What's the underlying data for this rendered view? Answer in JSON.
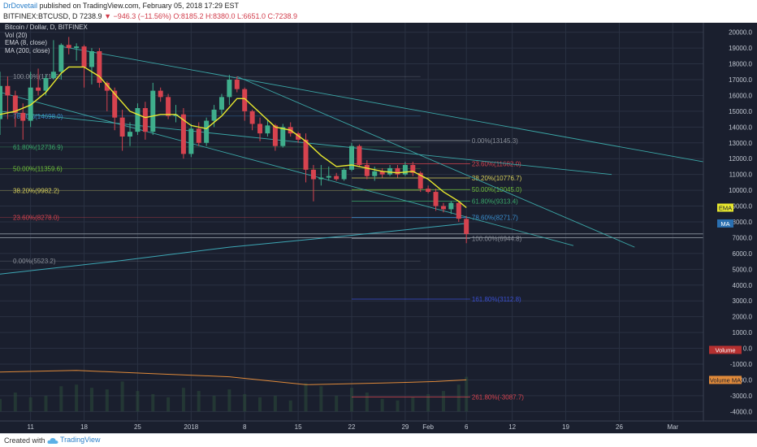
{
  "header": {
    "author": "DrDovetail",
    "published": "published on TradingView.com, February 05, 2018 17:29 EST",
    "symbol": "BITFINEX:BTCUSD, D",
    "last": "7238.9",
    "change_arrow": "▼",
    "change": "−946.3 (−11.56%)",
    "ohlc": "O:8185.2 H:8380.0 L:6651.0 C:7238.9"
  },
  "legend": {
    "title": "Bitcoin / Dollar, D, BITFINEX",
    "vol": "Vol (20)",
    "ema": "EMA (8, close)",
    "ma": "MA (200, close)"
  },
  "footer": {
    "created_with": "Created with",
    "brand": "TradingView"
  },
  "colors": {
    "background": "#1a1f2e",
    "grid": "#2a3142",
    "up": "#3fae8c",
    "down": "#d6434f",
    "ema": "#e8e82e",
    "ma": "#3da7b5",
    "volume_ma": "#e08a3a",
    "trendline": "#3ba7a7",
    "axis_text": "#c0c6d0"
  },
  "chart_data": {
    "type": "candlestick",
    "y_ticks": [
      20000,
      19000,
      18000,
      17000,
      16000,
      15000,
      14000,
      13000,
      12000,
      11000,
      10000,
      9000,
      8000,
      7000,
      6000,
      5000,
      4000,
      3000,
      2000,
      1000,
      0,
      -1000,
      -2000,
      -3000,
      -4000
    ],
    "ylim": [
      -4600,
      20600
    ],
    "x_ticks": [
      "11",
      "18",
      "25",
      "2018",
      "8",
      "15",
      "22",
      "29",
      "Feb",
      "6",
      "12",
      "19",
      "26",
      "Mar"
    ],
    "x_tick_days": [
      9,
      16,
      23,
      30,
      37,
      44,
      51,
      58,
      61,
      66,
      72,
      79,
      86,
      93
    ],
    "xlim": [
      5,
      97
    ],
    "badges": [
      {
        "label": "EMA",
        "value": 8900,
        "color": "#e8e82e",
        "text_color": "#1a1f2e"
      },
      {
        "label": "MA",
        "value": 7900,
        "color": "#2a6fb0",
        "text_color": "#ffffff"
      },
      {
        "label": "Volume",
        "value": -100,
        "color": "#b53030",
        "text_color": "#ffffff"
      },
      {
        "label": "Volume MA",
        "value": -2000,
        "color": "#e08a3a",
        "text_color": "#1a1f2e"
      }
    ],
    "candles": [
      {
        "day": 5,
        "o": 14500,
        "h": 17500,
        "l": 13500,
        "c": 16600
      },
      {
        "day": 6,
        "o": 16600,
        "h": 17200,
        "l": 14500,
        "c": 16000
      },
      {
        "day": 7,
        "o": 16000,
        "h": 16300,
        "l": 14000,
        "c": 14900
      },
      {
        "day": 8,
        "o": 14900,
        "h": 15500,
        "l": 13200,
        "c": 14400
      },
      {
        "day": 9,
        "o": 14400,
        "h": 17500,
        "l": 14000,
        "c": 16500
      },
      {
        "day": 10,
        "o": 16500,
        "h": 17700,
        "l": 16000,
        "c": 16300
      },
      {
        "day": 11,
        "o": 16300,
        "h": 17300,
        "l": 16000,
        "c": 17100
      },
      {
        "day": 12,
        "o": 17100,
        "h": 19500,
        "l": 17000,
        "c": 17500
      },
      {
        "day": 13,
        "o": 17500,
        "h": 19300,
        "l": 17000,
        "c": 19200
      },
      {
        "day": 14,
        "o": 19200,
        "h": 19700,
        "l": 18600,
        "c": 19000
      },
      {
        "day": 15,
        "o": 19000,
        "h": 19300,
        "l": 18200,
        "c": 19100
      },
      {
        "day": 16,
        "o": 19100,
        "h": 19200,
        "l": 16500,
        "c": 17800
      },
      {
        "day": 17,
        "o": 17800,
        "h": 19000,
        "l": 16700,
        "c": 18800
      },
      {
        "day": 18,
        "o": 18800,
        "h": 19000,
        "l": 16500,
        "c": 16800
      },
      {
        "day": 19,
        "o": 16800,
        "h": 16900,
        "l": 15000,
        "c": 16300
      },
      {
        "day": 20,
        "o": 16300,
        "h": 16500,
        "l": 13800,
        "c": 14600
      },
      {
        "day": 21,
        "o": 14600,
        "h": 15100,
        "l": 12500,
        "c": 13400
      },
      {
        "day": 22,
        "o": 13400,
        "h": 14300,
        "l": 12800,
        "c": 13700
      },
      {
        "day": 23,
        "o": 13700,
        "h": 15500,
        "l": 13500,
        "c": 15200
      },
      {
        "day": 24,
        "o": 15200,
        "h": 15600,
        "l": 13200,
        "c": 13700
      },
      {
        "day": 25,
        "o": 13700,
        "h": 16800,
        "l": 13500,
        "c": 16300
      },
      {
        "day": 26,
        "o": 16300,
        "h": 16500,
        "l": 15600,
        "c": 15900
      },
      {
        "day": 27,
        "o": 15900,
        "h": 16100,
        "l": 14500,
        "c": 14700
      },
      {
        "day": 28,
        "o": 14700,
        "h": 15400,
        "l": 14300,
        "c": 14800
      },
      {
        "day": 29,
        "o": 14800,
        "h": 15200,
        "l": 12000,
        "c": 12300
      },
      {
        "day": 30,
        "o": 12300,
        "h": 14200,
        "l": 12100,
        "c": 13900
      },
      {
        "day": 31,
        "o": 13900,
        "h": 14300,
        "l": 12800,
        "c": 13000
      },
      {
        "day": 32,
        "o": 13000,
        "h": 14600,
        "l": 12800,
        "c": 14400
      },
      {
        "day": 33,
        "o": 14400,
        "h": 15400,
        "l": 14000,
        "c": 15100
      },
      {
        "day": 34,
        "o": 15100,
        "h": 16100,
        "l": 14800,
        "c": 15900
      },
      {
        "day": 35,
        "o": 15900,
        "h": 17300,
        "l": 15400,
        "c": 17000
      },
      {
        "day": 36,
        "o": 17000,
        "h": 17200,
        "l": 16200,
        "c": 16400
      },
      {
        "day": 37,
        "o": 16400,
        "h": 16500,
        "l": 14400,
        "c": 15000
      },
      {
        "day": 38,
        "o": 15000,
        "h": 15100,
        "l": 13800,
        "c": 14200
      },
      {
        "day": 39,
        "o": 14200,
        "h": 14600,
        "l": 13100,
        "c": 13600
      },
      {
        "day": 40,
        "o": 13600,
        "h": 14400,
        "l": 13400,
        "c": 14100
      },
      {
        "day": 41,
        "o": 14100,
        "h": 14200,
        "l": 12500,
        "c": 12800
      },
      {
        "day": 42,
        "o": 12800,
        "h": 14200,
        "l": 12700,
        "c": 14000
      },
      {
        "day": 43,
        "o": 14000,
        "h": 14300,
        "l": 13400,
        "c": 13600
      },
      {
        "day": 44,
        "o": 13600,
        "h": 13700,
        "l": 13000,
        "c": 13200
      },
      {
        "day": 45,
        "o": 13200,
        "h": 13600,
        "l": 10500,
        "c": 11300
      },
      {
        "day": 46,
        "o": 11300,
        "h": 11600,
        "l": 9300,
        "c": 10700
      },
      {
        "day": 47,
        "o": 10700,
        "h": 11600,
        "l": 10300,
        "c": 10800
      },
      {
        "day": 48,
        "o": 10800,
        "h": 11500,
        "l": 10600,
        "c": 10900
      },
      {
        "day": 49,
        "o": 10900,
        "h": 11100,
        "l": 10600,
        "c": 10700
      },
      {
        "day": 50,
        "o": 10700,
        "h": 11400,
        "l": 10600,
        "c": 11300
      },
      {
        "day": 51,
        "o": 11300,
        "h": 13000,
        "l": 11200,
        "c": 12800
      },
      {
        "day": 52,
        "o": 12800,
        "h": 12900,
        "l": 11500,
        "c": 11600
      },
      {
        "day": 53,
        "o": 11600,
        "h": 11900,
        "l": 10700,
        "c": 10900
      },
      {
        "day": 54,
        "o": 10900,
        "h": 11500,
        "l": 10600,
        "c": 11200
      },
      {
        "day": 55,
        "o": 11200,
        "h": 11400,
        "l": 10800,
        "c": 11000
      },
      {
        "day": 56,
        "o": 11000,
        "h": 11600,
        "l": 10900,
        "c": 11400
      },
      {
        "day": 57,
        "o": 11400,
        "h": 11600,
        "l": 10800,
        "c": 11000
      },
      {
        "day": 58,
        "o": 11000,
        "h": 11800,
        "l": 10900,
        "c": 11600
      },
      {
        "day": 59,
        "o": 11600,
        "h": 11800,
        "l": 10900,
        "c": 11100
      },
      {
        "day": 60,
        "o": 11100,
        "h": 11200,
        "l": 9900,
        "c": 10100
      },
      {
        "day": 61,
        "o": 10100,
        "h": 10300,
        "l": 9800,
        "c": 9900
      },
      {
        "day": 62,
        "o": 9900,
        "h": 10100,
        "l": 8700,
        "c": 9000
      },
      {
        "day": 63,
        "o": 9000,
        "h": 9200,
        "l": 8600,
        "c": 8800
      },
      {
        "day": 64,
        "o": 8800,
        "h": 9300,
        "l": 8500,
        "c": 9200
      },
      {
        "day": 65,
        "o": 9200,
        "h": 9300,
        "l": 8000,
        "c": 8200
      },
      {
        "day": 66,
        "o": 8185,
        "h": 8380,
        "l": 6651,
        "c": 7239
      }
    ],
    "ema": [
      [
        5,
        14800
      ],
      [
        7,
        15000
      ],
      [
        9,
        15400
      ],
      [
        11,
        16200
      ],
      [
        13,
        17400
      ],
      [
        14,
        17800
      ],
      [
        16,
        17800
      ],
      [
        18,
        17200
      ],
      [
        20,
        16100
      ],
      [
        22,
        15000
      ],
      [
        24,
        14600
      ],
      [
        26,
        14800
      ],
      [
        28,
        14800
      ],
      [
        30,
        14100
      ],
      [
        32,
        13900
      ],
      [
        34,
        14700
      ],
      [
        36,
        15800
      ],
      [
        37,
        15800
      ],
      [
        39,
        14900
      ],
      [
        41,
        14000
      ],
      [
        43,
        13800
      ],
      [
        45,
        13100
      ],
      [
        47,
        12200
      ],
      [
        49,
        11500
      ],
      [
        51,
        11600
      ],
      [
        53,
        11400
      ],
      [
        55,
        11200
      ],
      [
        57,
        11100
      ],
      [
        59,
        11200
      ],
      [
        61,
        10700
      ],
      [
        63,
        9900
      ],
      [
        65,
        9300
      ],
      [
        66,
        8900
      ]
    ],
    "ma": [
      [
        5,
        4700
      ],
      [
        20,
        5500
      ],
      [
        35,
        6400
      ],
      [
        50,
        7100
      ],
      [
        60,
        7600
      ],
      [
        66,
        7900
      ]
    ],
    "volume_ma": [
      [
        5,
        -1500
      ],
      [
        15,
        -1400
      ],
      [
        25,
        -1600
      ],
      [
        35,
        -1800
      ],
      [
        45,
        -2300
      ],
      [
        55,
        -2200
      ],
      [
        62,
        -2100
      ],
      [
        66,
        -2000
      ]
    ],
    "volume": [
      [
        5,
        800
      ],
      [
        7,
        1200
      ],
      [
        9,
        900
      ],
      [
        11,
        1000
      ],
      [
        13,
        1600
      ],
      [
        15,
        1700
      ],
      [
        17,
        1500
      ],
      [
        19,
        1400
      ],
      [
        21,
        1900
      ],
      [
        23,
        1300
      ],
      [
        25,
        1100
      ],
      [
        27,
        900
      ],
      [
        29,
        1500
      ],
      [
        31,
        1300
      ],
      [
        33,
        1000
      ],
      [
        35,
        1400
      ],
      [
        37,
        1100
      ],
      [
        39,
        900
      ],
      [
        41,
        1000
      ],
      [
        43,
        700
      ],
      [
        45,
        1800
      ],
      [
        47,
        1600
      ],
      [
        49,
        1000
      ],
      [
        51,
        1500
      ],
      [
        53,
        1200
      ],
      [
        55,
        800
      ],
      [
        57,
        700
      ],
      [
        59,
        900
      ],
      [
        61,
        1100
      ],
      [
        63,
        1300
      ],
      [
        65,
        1700
      ],
      [
        66,
        2200
      ]
    ],
    "trendlines": [
      {
        "from": [
          13,
          19100
        ],
        "to": [
          97,
          11800
        ]
      },
      {
        "from": [
          5,
          16200
        ],
        "to": [
          80,
          6500
        ]
      },
      {
        "from": [
          36,
          17200
        ],
        "to": [
          88,
          6400
        ]
      },
      {
        "from": [
          5,
          15000
        ],
        "to": [
          85,
          11000
        ]
      }
    ],
    "fib_left": [
      {
        "label": "100.00%(17195.",
        "value": 17195,
        "color": "#8a8f99"
      },
      {
        "label": "78.60%(14698.0)",
        "value": 14698,
        "color": "#3a8fd0"
      },
      {
        "label": "61.80%(12736.9)",
        "value": 12737,
        "color": "#3aa86a"
      },
      {
        "label": "50.00%(11359.6)",
        "value": 11360,
        "color": "#6fbf3a"
      },
      {
        "label": "38.20%(9982.2)",
        "value": 9982,
        "color": "#d8d05a"
      },
      {
        "label": "23.60%(8278.0)",
        "value": 8278,
        "color": "#d6434f"
      },
      {
        "label": "0.00%(5523.2)",
        "value": 5523,
        "color": "#8a8f99"
      }
    ],
    "fib_right": [
      {
        "label": "0.00%(13145.3)",
        "value": 13145,
        "color": "#8a8f99"
      },
      {
        "label": "23.60%(11682.0)",
        "value": 11682,
        "color": "#d6434f"
      },
      {
        "label": "38.20%(10776.7)",
        "value": 10777,
        "color": "#d8d05a"
      },
      {
        "label": "50.00%(10045.0)",
        "value": 10045,
        "color": "#6fbf3a"
      },
      {
        "label": "61.80%(9313.4)",
        "value": 9313,
        "color": "#3aa86a"
      },
      {
        "label": "78.60%(8271.7)",
        "value": 8272,
        "color": "#3a8fd0"
      },
      {
        "label": "100.00%(6944.8)",
        "value": 6945,
        "color": "#8a8f99"
      },
      {
        "label": "161.80%(3112.8)",
        "value": 3113,
        "color": "#3a4fd0"
      },
      {
        "label": "261.80%(-3087.7)",
        "value": -3088,
        "color": "#d6434f"
      }
    ],
    "h_lines": [
      7238.9,
      7000
    ]
  }
}
